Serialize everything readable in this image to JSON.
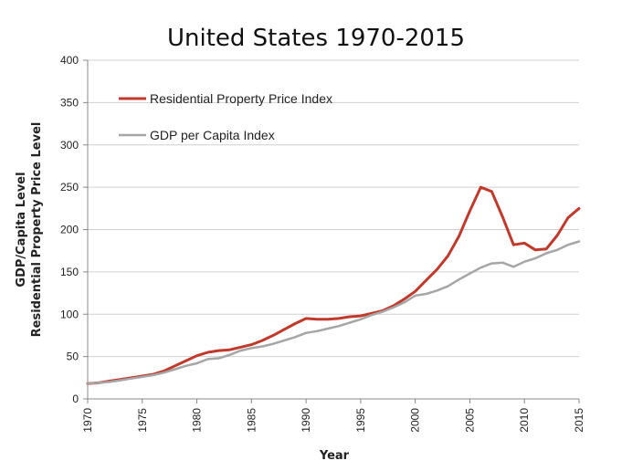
{
  "chart_data": {
    "type": "line",
    "title": "United States 1970-2015",
    "xlabel": "Year",
    "ylabel_lines": [
      "GDP/Capita Level",
      "Residential Property Price Level"
    ],
    "xlim": [
      1970,
      2015
    ],
    "ylim": [
      0,
      400
    ],
    "yticks": [
      0,
      50,
      100,
      150,
      200,
      250,
      300,
      350,
      400
    ],
    "xticks": [
      1970,
      1975,
      1980,
      1985,
      1990,
      1995,
      2000,
      2005,
      2010,
      2015
    ],
    "grid": "horizontal",
    "legend_position": "top-left",
    "series": [
      {
        "name": "Residential Property Price Index",
        "color": "#c0392b",
        "x": [
          1970,
          1971,
          1972,
          1973,
          1974,
          1975,
          1976,
          1977,
          1978,
          1979,
          1980,
          1981,
          1982,
          1983,
          1984,
          1985,
          1986,
          1987,
          1988,
          1989,
          1990,
          1991,
          1992,
          1993,
          1994,
          1995,
          1996,
          1997,
          1998,
          1999,
          2000,
          2001,
          2002,
          2003,
          2004,
          2005,
          2006,
          2007,
          2008,
          2009,
          2010,
          2011,
          2012,
          2013,
          2014,
          2015
        ],
        "values": [
          18,
          19,
          21,
          23,
          25,
          27,
          29,
          33,
          39,
          45,
          51,
          55,
          57,
          58,
          61,
          64,
          69,
          75,
          82,
          89,
          95,
          94,
          94,
          95,
          97,
          98,
          101,
          104,
          110,
          118,
          127,
          140,
          153,
          169,
          192,
          222,
          250,
          245,
          215,
          182,
          184,
          176,
          177,
          193,
          214,
          225
        ]
      },
      {
        "name": "GDP per Capita Index",
        "color": "#a6a6a6",
        "x": [
          1970,
          1971,
          1972,
          1973,
          1974,
          1975,
          1976,
          1977,
          1978,
          1979,
          1980,
          1981,
          1982,
          1983,
          1984,
          1985,
          1986,
          1987,
          1988,
          1989,
          1990,
          1991,
          1992,
          1993,
          1994,
          1995,
          1996,
          1997,
          1998,
          1999,
          2000,
          2001,
          2002,
          2003,
          2004,
          2005,
          2006,
          2007,
          2008,
          2009,
          2010,
          2011,
          2012,
          2013,
          2014,
          2015
        ],
        "values": [
          18,
          19,
          20,
          22,
          24,
          26,
          28,
          31,
          35,
          39,
          42,
          47,
          48,
          52,
          57,
          60,
          62,
          65,
          69,
          73,
          78,
          80,
          83,
          86,
          90,
          94,
          99,
          103,
          108,
          114,
          122,
          124,
          128,
          133,
          141,
          148,
          155,
          160,
          161,
          156,
          162,
          166,
          172,
          176,
          182,
          186
        ]
      }
    ]
  }
}
